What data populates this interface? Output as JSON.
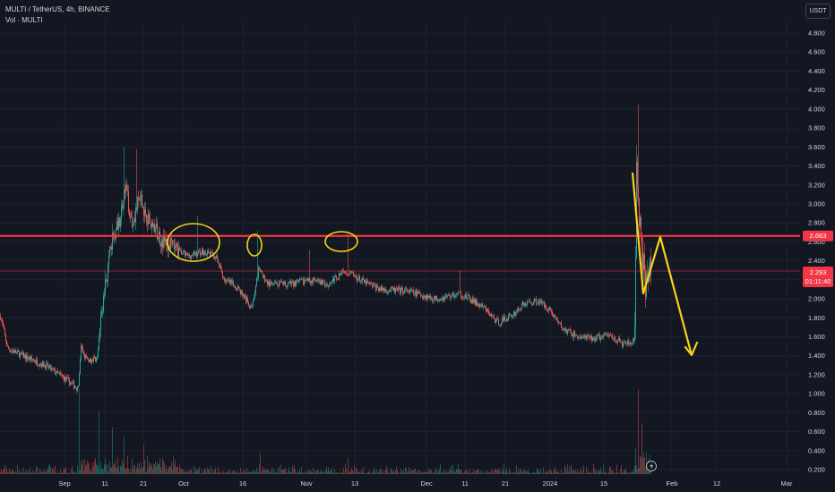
{
  "legend": {
    "symbol_line": "MULTI / TetherUS, 4h, BINANCE",
    "volume_line": "Vol · MULTI"
  },
  "currency_button": "USDT",
  "colors": {
    "background": "#131722",
    "up": "#26a69a",
    "down": "#ef5350",
    "level_line": "#f23645",
    "annotation": "#f7d21a",
    "text": "#d1d4dc"
  },
  "price_badges": {
    "level": "2.663",
    "last": "2.293",
    "countdown": "01:11:40"
  },
  "chart_data": {
    "type": "candlestick",
    "title": "",
    "interval": "4h",
    "ylim": [
      0.2,
      4.9
    ],
    "y_ticks": [
      "4.800",
      "4.600",
      "4.400",
      "4.200",
      "4.000",
      "3.800",
      "3.600",
      "3.400",
      "3.200",
      "3.000",
      "2.800",
      "2.600",
      "2.400",
      "2.200",
      "2.000",
      "1.800",
      "1.600",
      "1.400",
      "1.200",
      "1.000",
      "0.800",
      "0.600",
      "0.400",
      "0.200"
    ],
    "x_ticks": [
      "Sep",
      "11",
      "21",
      "Oct",
      "16",
      "Nov",
      "13",
      "Dec",
      "11",
      "21",
      "2024",
      "15",
      "Feb",
      "12",
      "Mar"
    ],
    "horizontal_level": 2.663,
    "last_price": 2.293,
    "price_path": [
      {
        "t": 0,
        "p": 1.82
      },
      {
        "t": 8,
        "p": 1.48
      },
      {
        "t": 25,
        "p": 1.4
      },
      {
        "t": 50,
        "p": 1.3
      },
      {
        "t": 75,
        "p": 1.14
      },
      {
        "t": 87,
        "p": 1.05
      },
      {
        "t": 90,
        "p": 1.48
      },
      {
        "t": 97,
        "p": 1.35
      },
      {
        "t": 108,
        "p": 1.38
      },
      {
        "t": 114,
        "p": 1.95
      },
      {
        "t": 125,
        "p": 2.62
      },
      {
        "t": 133,
        "p": 2.85
      },
      {
        "t": 140,
        "p": 3.15
      },
      {
        "t": 147,
        "p": 2.8
      },
      {
        "t": 155,
        "p": 3.05
      },
      {
        "t": 165,
        "p": 2.85
      },
      {
        "t": 180,
        "p": 2.62
      },
      {
        "t": 195,
        "p": 2.52
      },
      {
        "t": 210,
        "p": 2.45
      },
      {
        "t": 225,
        "p": 2.5
      },
      {
        "t": 240,
        "p": 2.45
      },
      {
        "t": 250,
        "p": 2.2
      },
      {
        "t": 265,
        "p": 2.12
      },
      {
        "t": 280,
        "p": 1.9
      },
      {
        "t": 288,
        "p": 2.3
      },
      {
        "t": 300,
        "p": 2.15
      },
      {
        "t": 320,
        "p": 2.15
      },
      {
        "t": 345,
        "p": 2.2
      },
      {
        "t": 365,
        "p": 2.15
      },
      {
        "t": 385,
        "p": 2.3
      },
      {
        "t": 405,
        "p": 2.18
      },
      {
        "t": 425,
        "p": 2.1
      },
      {
        "t": 455,
        "p": 2.08
      },
      {
        "t": 485,
        "p": 2.0
      },
      {
        "t": 512,
        "p": 2.05
      },
      {
        "t": 520,
        "p": 2.02
      },
      {
        "t": 540,
        "p": 1.9
      },
      {
        "t": 555,
        "p": 1.75
      },
      {
        "t": 570,
        "p": 1.82
      },
      {
        "t": 585,
        "p": 1.95
      },
      {
        "t": 600,
        "p": 1.98
      },
      {
        "t": 612,
        "p": 1.9
      },
      {
        "t": 628,
        "p": 1.68
      },
      {
        "t": 645,
        "p": 1.6
      },
      {
        "t": 660,
        "p": 1.58
      },
      {
        "t": 680,
        "p": 1.62
      },
      {
        "t": 695,
        "p": 1.52
      },
      {
        "t": 708,
        "p": 1.55
      },
      {
        "t": 710,
        "p": 3.3
      },
      {
        "t": 714,
        "p": 2.7
      },
      {
        "t": 720,
        "p": 2.2
      },
      {
        "t": 726,
        "p": 2.3
      }
    ],
    "spikes": [
      {
        "t": 138,
        "p": 3.6
      },
      {
        "t": 152,
        "p": 3.58
      },
      {
        "t": 220,
        "p": 2.88
      },
      {
        "t": 287,
        "p": 2.72
      },
      {
        "t": 345,
        "p": 2.52
      },
      {
        "t": 388,
        "p": 2.72
      },
      {
        "t": 513,
        "p": 2.3
      },
      {
        "t": 712,
        "p": 4.05
      }
    ],
    "volume_spikes": [
      {
        "t": 88,
        "v": 1.0
      },
      {
        "t": 110,
        "v": 0.75
      },
      {
        "t": 125,
        "v": 0.55
      },
      {
        "t": 138,
        "v": 0.45
      },
      {
        "t": 160,
        "v": 0.35
      },
      {
        "t": 290,
        "v": 0.25
      },
      {
        "t": 388,
        "v": 0.2
      },
      {
        "t": 712,
        "v": 1.0
      },
      {
        "t": 716,
        "v": 0.6
      }
    ]
  },
  "annotations": {
    "circles": [
      {
        "cx": 216,
        "cy": 271,
        "rx": 29,
        "ry": 21
      },
      {
        "cx": 284,
        "cy": 274,
        "rx": 8,
        "ry": 12
      },
      {
        "cx": 381,
        "cy": 270,
        "rx": 18,
        "ry": 11
      }
    ],
    "zigzag": [
      [
        706,
        193
      ],
      [
        718,
        328
      ],
      [
        737,
        265
      ],
      [
        772,
        397
      ]
    ]
  }
}
